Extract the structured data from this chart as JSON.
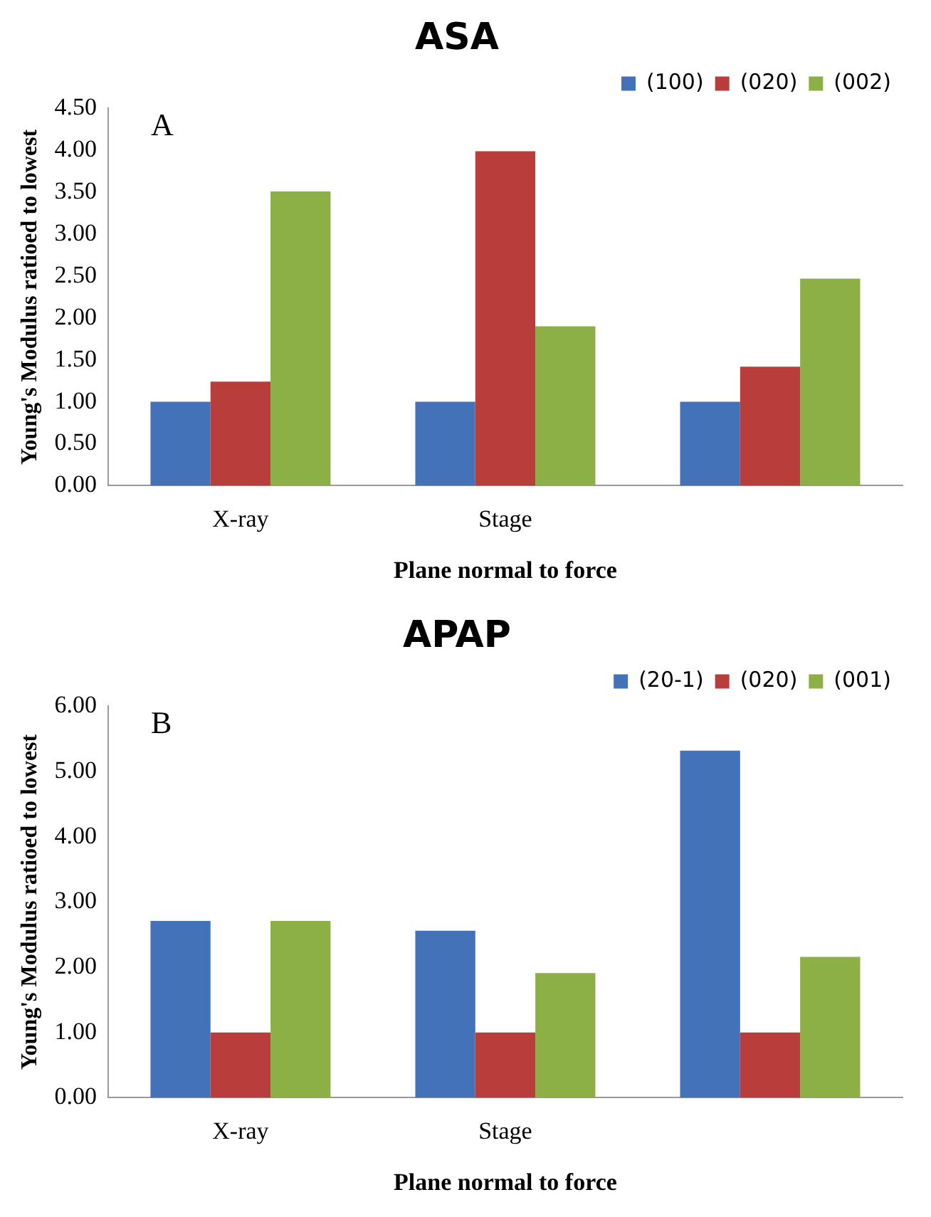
{
  "chart_data": [
    {
      "type": "bar",
      "title": "ASA",
      "xlabel": "Plane normal to force",
      "ylabel": "Young's Modulus ratioed to lowest",
      "annotations": [
        "A"
      ],
      "categories": [
        "X-ray",
        "Stage",
        null
      ],
      "series": [
        {
          "name": "(100)",
          "color": "#4372b8",
          "values": [
            1.0,
            1.0,
            1.0
          ]
        },
        {
          "name": "(020)",
          "color": "#b93d3b",
          "values": [
            1.24,
            3.99,
            1.42
          ]
        },
        {
          "name": "(002)",
          "color": "#8cb045",
          "values": [
            3.51,
            1.9,
            2.47
          ]
        }
      ],
      "ylim": [
        0,
        4.5
      ],
      "yticks": [
        {
          "value": 0,
          "label": "0.00"
        },
        {
          "value": 0.5,
          "label": "0.50"
        },
        {
          "value": 1,
          "label": "1.00"
        },
        {
          "value": 1.5,
          "label": "1.50"
        },
        {
          "value": 2,
          "label": "2.00"
        },
        {
          "value": 2.5,
          "label": "2.50"
        },
        {
          "value": 3,
          "label": "3.00"
        },
        {
          "value": 3.5,
          "label": "3.50"
        },
        {
          "value": 4,
          "label": "4.00"
        },
        {
          "value": 4.5,
          "label": "4.50"
        }
      ],
      "grid": false,
      "legend": "top right"
    },
    {
      "type": "bar",
      "title": "APAP",
      "xlabel": "Plane normal to force",
      "ylabel": "Young's Modulus ratioed to lowest",
      "annotations": [
        "B"
      ],
      "categories": [
        "X-ray",
        "Stage",
        null
      ],
      "series": [
        {
          "name": "(20-1)",
          "color": "#4372b8",
          "values": [
            2.71,
            2.56,
            5.32
          ]
        },
        {
          "name": "(020)",
          "color": "#b93d3b",
          "values": [
            1.0,
            1.0,
            1.0
          ]
        },
        {
          "name": "(001)",
          "color": "#8cb045",
          "values": [
            2.71,
            1.91,
            2.16
          ]
        }
      ],
      "ylim": [
        0,
        6
      ],
      "yticks": [
        {
          "value": 0,
          "label": "0.00"
        },
        {
          "value": 1,
          "label": "1.00"
        },
        {
          "value": 2,
          "label": "2.00"
        },
        {
          "value": 3,
          "label": "3.00"
        },
        {
          "value": 4,
          "label": "4.00"
        },
        {
          "value": 5,
          "label": "5.00"
        },
        {
          "value": 6,
          "label": "6.00"
        }
      ],
      "grid": false,
      "legend": "top right"
    }
  ]
}
